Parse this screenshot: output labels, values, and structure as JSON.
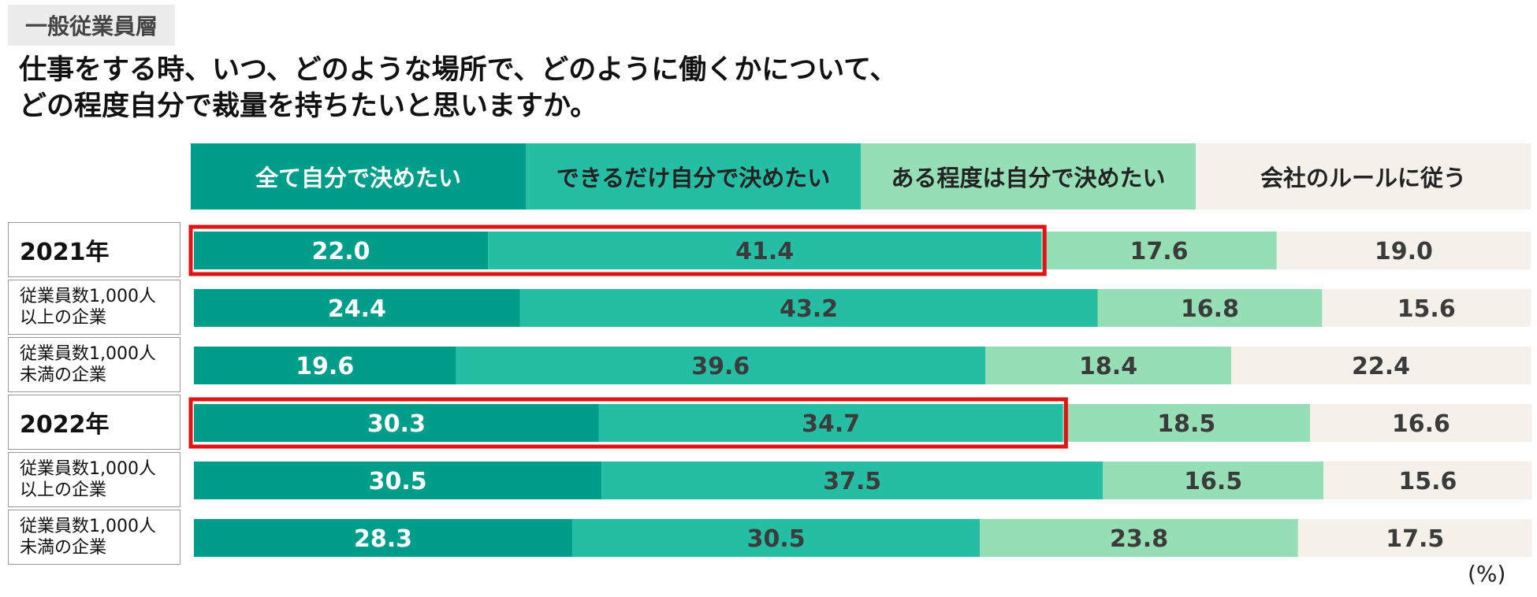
{
  "tag": "一般従業員層",
  "title": {
    "line1": "仕事をする時、いつ、どのような場所で、どのように働くかについて、",
    "line2": "どの程度自分で裁量を持ちたいと思いますか。"
  },
  "unit": "(%)",
  "colors": {
    "series": [
      "#009e8a",
      "#26bda5",
      "#96dfb6",
      "#f5f1ea"
    ],
    "value_text": [
      "#ffffff",
      "#3b3b3b",
      "#3b3b3b",
      "#3b3b3b"
    ],
    "legend_text": [
      "#ffffff",
      "#222222",
      "#222222",
      "#222222"
    ],
    "highlight": "#e01414"
  },
  "chart_data": {
    "type": "bar",
    "orientation": "horizontal",
    "stacked": true,
    "categories": [
      "2021年",
      "従業員数1,000人\n以上の企業",
      "従業員数1,000人\n未満の企業",
      "2022年",
      "従業員数1,000人\n以上の企業",
      "従業員数1,000人\n未満の企業"
    ],
    "category_kind": [
      "year",
      "sub",
      "sub",
      "year",
      "sub",
      "sub"
    ],
    "series": [
      {
        "name": "全て自分で決めたい",
        "values": [
          22.0,
          24.4,
          19.6,
          30.3,
          30.5,
          28.3
        ]
      },
      {
        "name": "できるだけ自分で決めたい",
        "values": [
          41.4,
          43.2,
          39.6,
          34.7,
          37.5,
          30.5
        ]
      },
      {
        "name": "ある程度は自分で決めたい",
        "values": [
          17.6,
          16.8,
          18.4,
          18.5,
          16.5,
          23.8
        ]
      },
      {
        "name": "会社のルールに従う",
        "values": [
          19.0,
          15.6,
          22.4,
          16.6,
          15.6,
          17.5
        ]
      }
    ],
    "xlim": [
      0,
      100
    ],
    "highlight_rows": [
      0,
      3
    ],
    "highlight_series_count": 2,
    "legend_placement": "top",
    "grid": false
  }
}
